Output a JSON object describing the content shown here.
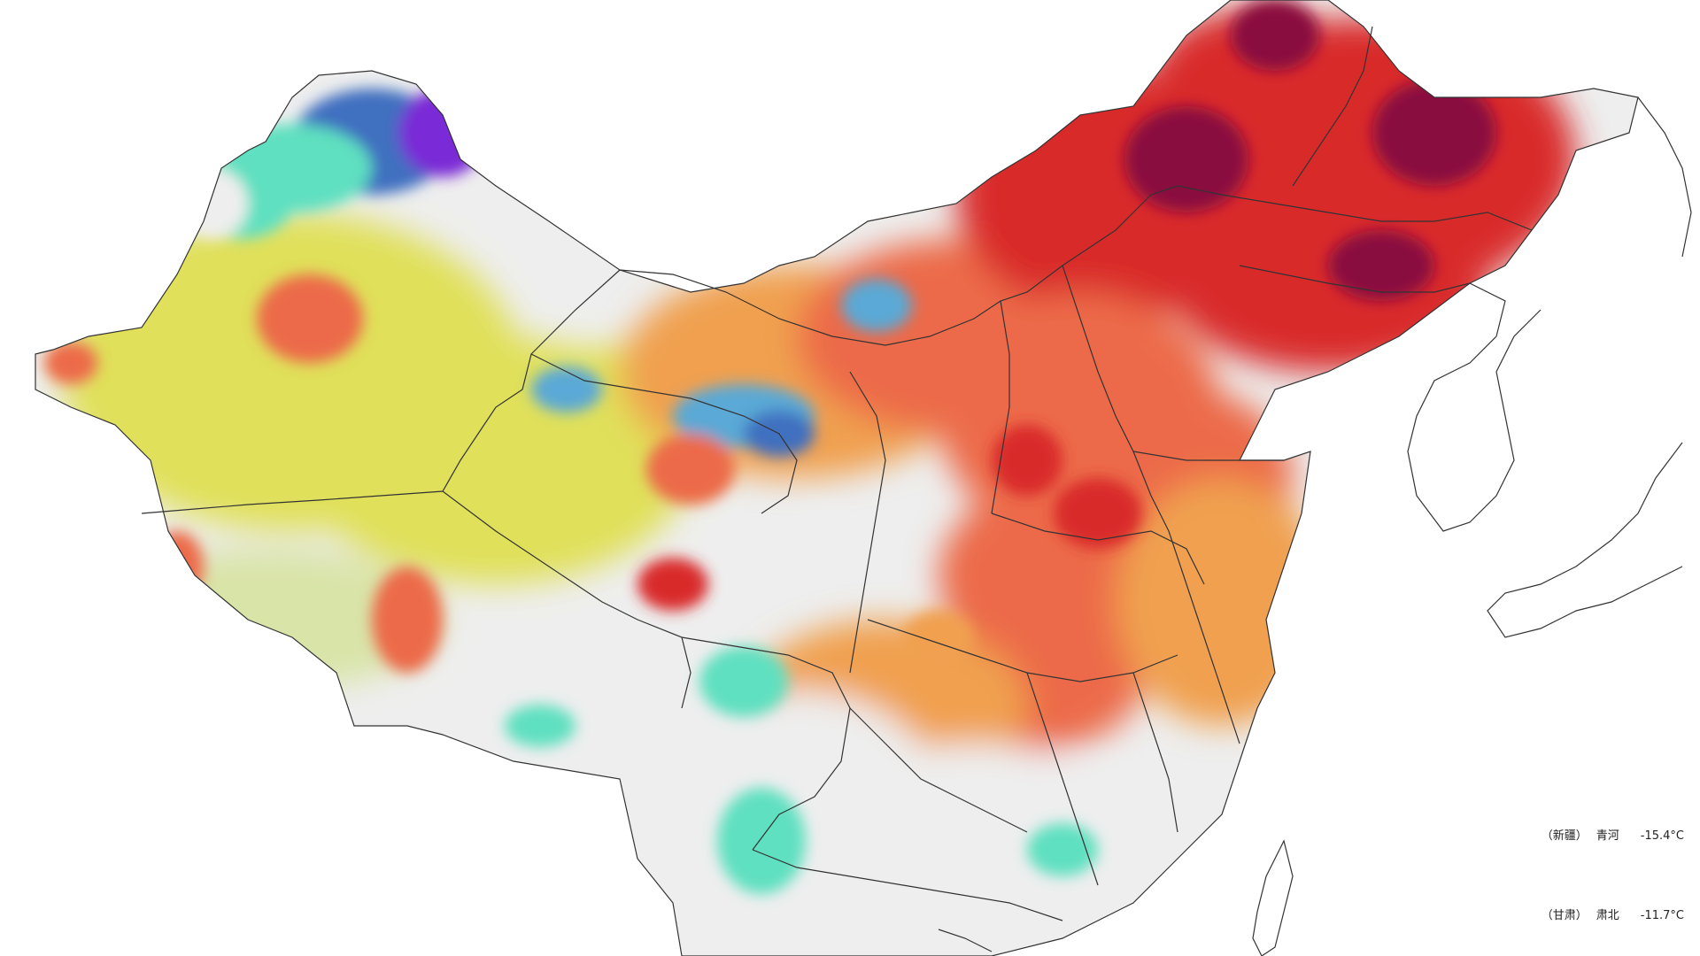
{
  "colors": {
    "background": "#ffffff",
    "cold_extreme": "#7a2bd6",
    "cold_deep": "#3f6fc0",
    "cold": "#5aa9d6",
    "cool": "#5fe0c0",
    "near_zero": "#eeeeee",
    "slight_warm": "#d9e4a8",
    "warm": "#e0e05a",
    "orange": "#f0a050",
    "hot": "#ec6a4a",
    "very_hot": "#d92c2c",
    "extreme_hot": "#8a1040",
    "boundary": "#333333"
  },
  "legend": {
    "rows": [
      {
        "province": "（新疆）",
        "station": "青河",
        "value": "-15.4°C"
      },
      {
        "province": "（甘肃）",
        "station": "肃北",
        "value": "-11.7°C"
      }
    ]
  }
}
